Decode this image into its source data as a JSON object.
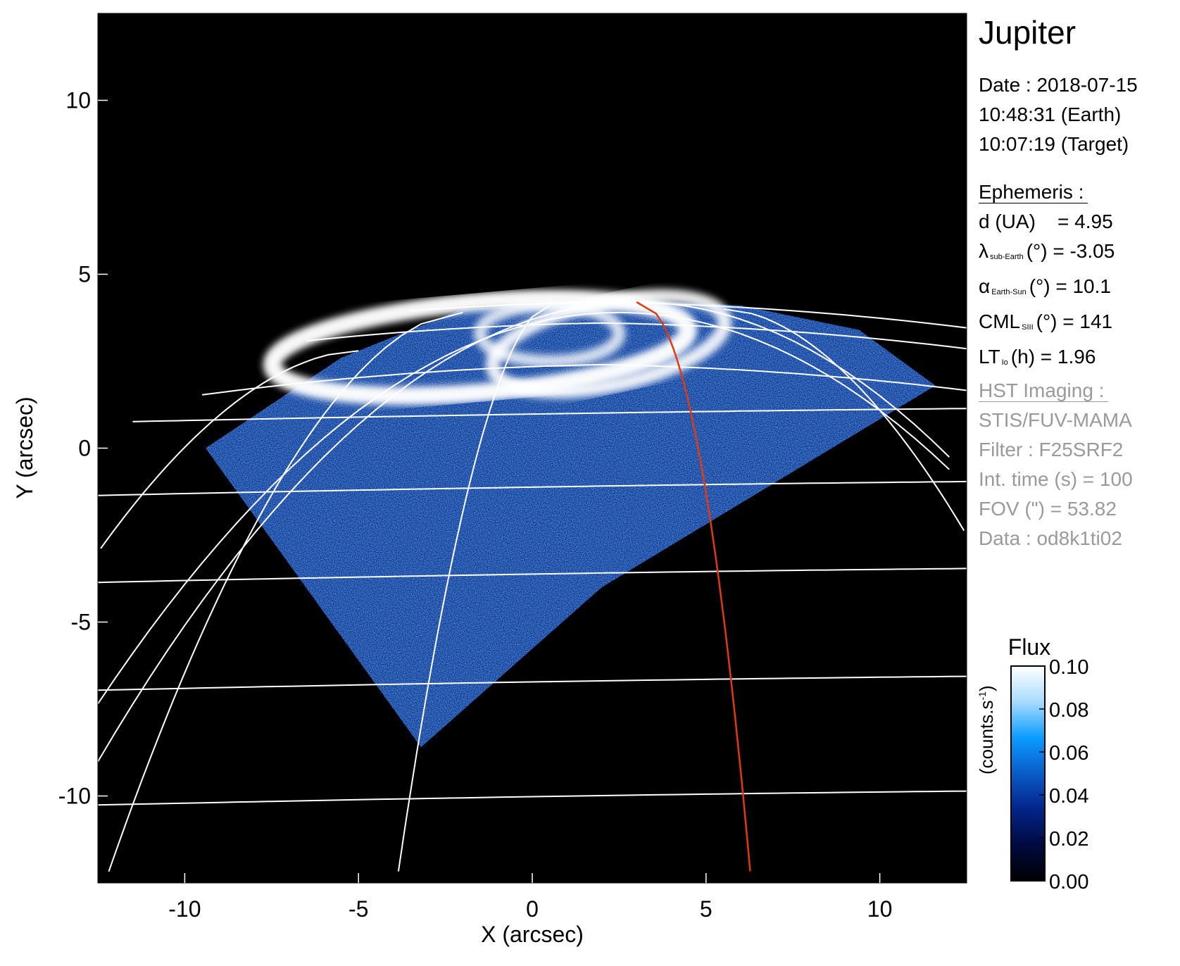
{
  "chart_data": {
    "type": "heatmap",
    "xlabel": "X (arcsec)",
    "ylabel": "Y (arcsec)",
    "xlim": [
      -12.5,
      12.5
    ],
    "ylim": [
      -12.5,
      12.5
    ],
    "xticks": [
      "-10",
      "-5",
      "0",
      "5",
      "10"
    ],
    "yticks": [
      "10",
      "5",
      "0",
      "-5",
      "-10"
    ],
    "xtick_values": [
      -10,
      -5,
      0,
      5,
      10
    ],
    "ytick_values": [
      10,
      5,
      0,
      -5,
      -10
    ],
    "colorbar": {
      "title": "Flux",
      "unit_label": "(counts.s",
      "unit_sup": "-1",
      "unit_close": ")",
      "range": [
        0,
        0.1
      ],
      "ticks": [
        "0.10",
        "0.08",
        "0.06",
        "0.04",
        "0.02",
        "0.00"
      ],
      "colors": [
        "#000000",
        "#000a40",
        "#03248a",
        "#0a5cc8",
        "#0a9cff",
        "#a8dcff",
        "#ffffff"
      ]
    },
    "grid_color": "#ffffff",
    "meridian_highlight_color": "#e03a10",
    "background": "#000000"
  },
  "info": {
    "title": "Jupiter",
    "date": "Date : 2018-07-15",
    "time_earth": "10:48:31 (Earth)",
    "time_target": "10:07:19 (Target)",
    "ephemeris_heading": "Ephemeris :",
    "d_label": "d (UA)",
    "d_value": "= 4.95",
    "lambda_symbol": "λ",
    "lambda_sub": "sub-Earth",
    "lambda_value": "(°) = -3.05",
    "alpha_symbol": "α",
    "alpha_sub": "Earth-Sun",
    "alpha_value": "(°) = 10.1",
    "cml_symbol": "CML",
    "cml_sub": "SIII",
    "cml_value": "(°) = 141",
    "lt_symbol": "LT",
    "lt_sub": "Io",
    "lt_value": "(h) = 1.96",
    "hst_heading": "HST Imaging :",
    "instrument": "STIS/FUV-MAMA",
    "filter": "Filter : F25SRF2",
    "int_time": "Int. time (s) = 100",
    "fov": "FOV (\") = 53.82",
    "data_id": "Data : od8k1ti02"
  }
}
